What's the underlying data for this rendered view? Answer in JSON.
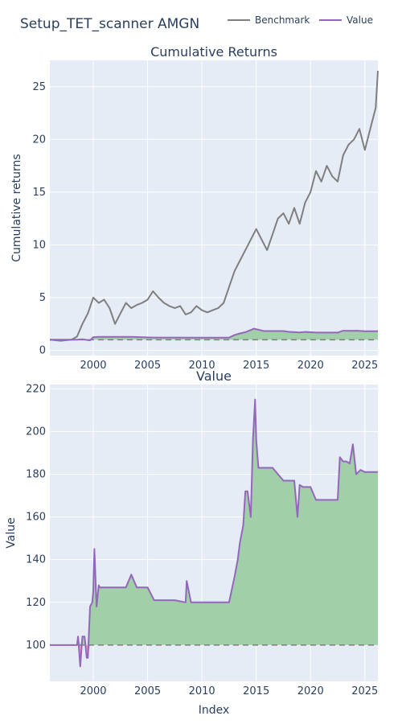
{
  "title": "Setup_TET_scanner AMGN",
  "legend": [
    {
      "name": "Benchmark",
      "color": "#7f7f7f"
    },
    {
      "name": "Value",
      "color": "#9467bd"
    }
  ],
  "colors": {
    "plot_bg": "#e5ecf6",
    "grid": "#ffffff",
    "benchmark": "#7f7f7f",
    "value": "#9467bd",
    "gain_fill": "#a1cfa7",
    "loss_fill": "#f2a1a5",
    "baseline": "#7f7f7f",
    "text": "#2a3f5f"
  },
  "chart_data": [
    {
      "type": "line",
      "title": "Cumulative Returns",
      "xlabel": "",
      "ylabel": "Cumulative returns",
      "xlim": [
        1996.0,
        2026.2
      ],
      "ylim": [
        -0.5,
        27.5
      ],
      "y_ticks": [
        0,
        5,
        10,
        15,
        20,
        25
      ],
      "x_ticks": [
        2000,
        2005,
        2010,
        2015,
        2020,
        2025
      ],
      "x_tick_labels": [
        "2000",
        "2005",
        "2010",
        "2015",
        "2020",
        "2025"
      ],
      "baseline": 1,
      "series": [
        {
          "name": "Benchmark",
          "x": [
            1996.0,
            1997.0,
            1998.0,
            1998.5,
            1999.0,
            1999.5,
            2000.0,
            2000.5,
            2001.0,
            2001.5,
            2002.0,
            2002.5,
            2003.0,
            2003.5,
            2004.0,
            2004.5,
            2005.0,
            2005.5,
            2006.0,
            2006.5,
            2007.0,
            2007.5,
            2008.0,
            2008.5,
            2009.0,
            2009.5,
            2010.0,
            2010.5,
            2011.0,
            2011.5,
            2012.0,
            2012.5,
            2013.0,
            2013.5,
            2014.0,
            2014.5,
            2015.0,
            2015.5,
            2016.0,
            2016.5,
            2017.0,
            2017.5,
            2018.0,
            2018.5,
            2019.0,
            2019.5,
            2020.0,
            2020.5,
            2021.0,
            2021.5,
            2022.0,
            2022.5,
            2023.0,
            2023.5,
            2024.0,
            2024.5,
            2025.0,
            2025.5,
            2026.0,
            2026.2
          ],
          "values": [
            1.0,
            0.9,
            1.0,
            1.3,
            2.5,
            3.5,
            5.0,
            4.5,
            4.8,
            4.0,
            2.5,
            3.5,
            4.5,
            4.0,
            4.3,
            4.5,
            4.8,
            5.6,
            5.0,
            4.5,
            4.2,
            4.0,
            4.2,
            3.4,
            3.6,
            4.2,
            3.8,
            3.6,
            3.8,
            4.0,
            4.5,
            6.0,
            7.5,
            8.5,
            9.5,
            10.5,
            11.5,
            10.5,
            9.5,
            11.0,
            12.5,
            13.0,
            12.0,
            13.5,
            12.0,
            14.0,
            15.0,
            17.0,
            16.0,
            17.5,
            16.5,
            16.0,
            18.5,
            19.5,
            20.0,
            21.0,
            19.0,
            21.0,
            23.0,
            26.5
          ]
        },
        {
          "name": "Value",
          "x": [
            1996.0,
            1998.5,
            1999.0,
            1999.7,
            2000.0,
            2000.5,
            2003.5,
            2005.5,
            2006.0,
            2010.0,
            2012.5,
            2013.0,
            2013.5,
            2014.0,
            2014.8,
            2015.2,
            2015.7,
            2017.5,
            2018.0,
            2019.0,
            2019.5,
            2020.5,
            2022.5,
            2023.0,
            2023.8,
            2024.3,
            2025.0,
            2026.2
          ],
          "values": [
            1.0,
            1.0,
            1.04,
            0.94,
            1.25,
            1.27,
            1.27,
            1.21,
            1.21,
            1.2,
            1.2,
            1.45,
            1.6,
            1.72,
            2.05,
            1.96,
            1.83,
            1.83,
            1.75,
            1.7,
            1.74,
            1.68,
            1.68,
            1.86,
            1.84,
            1.86,
            1.81,
            1.81
          ]
        }
      ]
    },
    {
      "type": "area",
      "title": "Value",
      "xlabel": "Index",
      "ylabel": "Value",
      "xlim": [
        1996.0,
        2026.2
      ],
      "ylim": [
        83,
        222
      ],
      "y_ticks": [
        100,
        120,
        140,
        160,
        180,
        200,
        220
      ],
      "x_ticks": [
        2000,
        2005,
        2010,
        2015,
        2020,
        2025
      ],
      "x_tick_labels": [
        "2000",
        "2005",
        "2010",
        "2015",
        "2020",
        "2025"
      ],
      "baseline": 100,
      "series": [
        {
          "name": "Value",
          "x": [
            1996.0,
            1998.0,
            1998.5,
            1998.6,
            1998.8,
            1999.0,
            1999.2,
            1999.4,
            1999.5,
            1999.7,
            1999.9,
            2000.0,
            2000.1,
            2000.3,
            2000.5,
            2000.6,
            2001.0,
            2002.0,
            2003.0,
            2003.5,
            2004.0,
            2005.0,
            2005.6,
            2005.8,
            2006.5,
            2007.5,
            2008.5,
            2008.6,
            2009.0,
            2010.0,
            2011.0,
            2012.0,
            2012.5,
            2013.0,
            2013.3,
            2013.5,
            2013.8,
            2014.0,
            2014.2,
            2014.5,
            2014.7,
            2014.9,
            2015.0,
            2015.2,
            2015.5,
            2015.8,
            2016.5,
            2017.5,
            2017.8,
            2018.5,
            2018.8,
            2019.0,
            2019.3,
            2019.5,
            2020.0,
            2020.5,
            2021.5,
            2022.5,
            2022.7,
            2023.0,
            2023.3,
            2023.6,
            2023.9,
            2024.2,
            2024.6,
            2025.0,
            2026.2
          ],
          "values": [
            100,
            100,
            100,
            104,
            90,
            104,
            104,
            94,
            94,
            118,
            120,
            125,
            145,
            118,
            128,
            127,
            127,
            127,
            127,
            133,
            127,
            127,
            121,
            121,
            121,
            121,
            120,
            130,
            120,
            120,
            120,
            120,
            120,
            132,
            140,
            148,
            156,
            172,
            172,
            160,
            196,
            215,
            196,
            183,
            183,
            183,
            183,
            177,
            177,
            177,
            160,
            175,
            174,
            174,
            174,
            168,
            168,
            168,
            188,
            186,
            186,
            185,
            194,
            180,
            182,
            181,
            181
          ]
        }
      ]
    }
  ]
}
